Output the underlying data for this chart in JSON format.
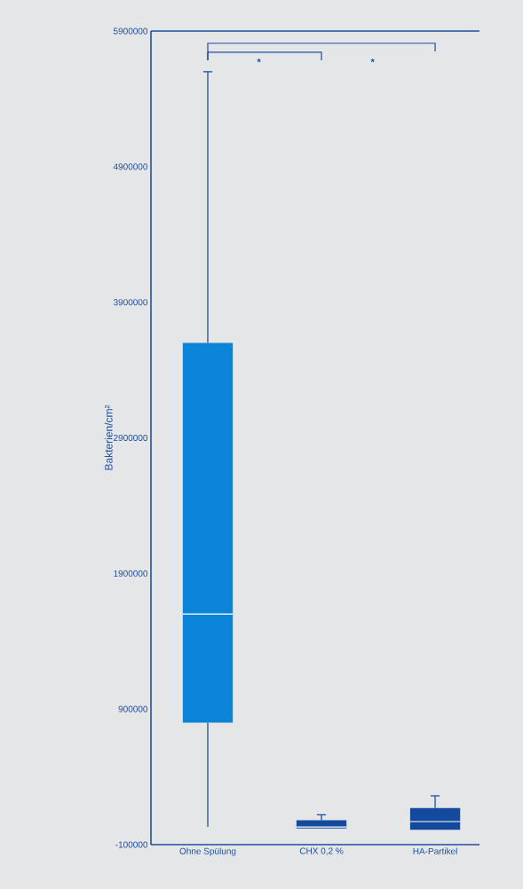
{
  "chart_data": {
    "type": "box",
    "ylabel": "Bakterien/cm²",
    "categories": [
      "Ohne Spülung",
      "CHX 0,2 %",
      "HA-Partikel"
    ],
    "boxes": [
      {
        "low": 30000,
        "q1": 800000,
        "median": 1600000,
        "q3": 3600000,
        "high": 5600000
      },
      {
        "low": 20000,
        "q1": 20000,
        "median": 30000,
        "q3": 80000,
        "high": 120000
      },
      {
        "low": 10000,
        "q1": 10000,
        "median": 70000,
        "q3": 170000,
        "high": 260000
      }
    ],
    "colors": [
      "#0a84d6",
      "#134a9e",
      "#134a9e"
    ],
    "ylim": [
      -100000,
      5900000
    ],
    "yticks": [
      -100000,
      900000,
      1900000,
      2900000,
      3900000,
      4900000,
      5900000
    ],
    "annotations": [
      "*",
      "*"
    ],
    "grid": false
  }
}
